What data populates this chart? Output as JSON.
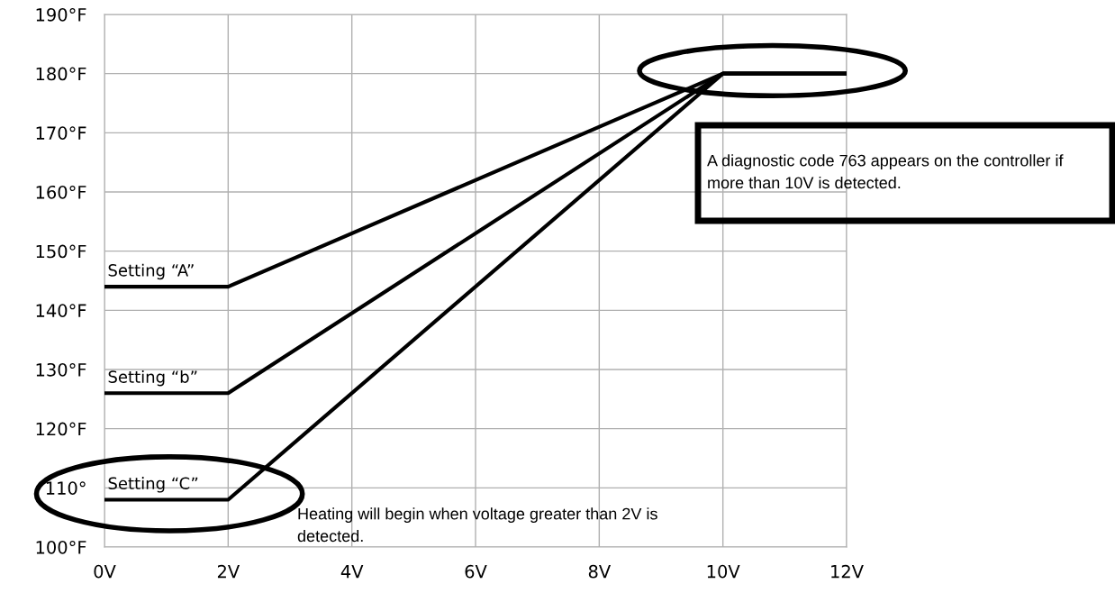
{
  "chart_data": {
    "type": "line",
    "x": [
      0,
      2,
      10,
      12
    ],
    "xlim": [
      0,
      12
    ],
    "ylim": [
      100,
      190
    ],
    "xticks": [
      {
        "value": 0,
        "label": "0V"
      },
      {
        "value": 2,
        "label": "2V"
      },
      {
        "value": 4,
        "label": "4V"
      },
      {
        "value": 6,
        "label": "6V"
      },
      {
        "value": 8,
        "label": "8V"
      },
      {
        "value": 10,
        "label": "10V"
      },
      {
        "value": 12,
        "label": "12V"
      }
    ],
    "yticks": [
      {
        "value": 100,
        "label": "100°F"
      },
      {
        "value": 110,
        "label": "110°"
      },
      {
        "value": 120,
        "label": "120°F"
      },
      {
        "value": 130,
        "label": "130°F"
      },
      {
        "value": 140,
        "label": "140°F"
      },
      {
        "value": 150,
        "label": "150°F"
      },
      {
        "value": 160,
        "label": "160°F"
      },
      {
        "value": 170,
        "label": "170°F"
      },
      {
        "value": 180,
        "label": "180°F"
      },
      {
        "value": 190,
        "label": "190°F"
      }
    ],
    "series": [
      {
        "name": "Setting “A”",
        "color": "#000000",
        "values": [
          144,
          144,
          180,
          180
        ]
      },
      {
        "name": "Setting “b”",
        "color": "#000000",
        "values": [
          126,
          126,
          180,
          180
        ]
      },
      {
        "name": "Setting “C”",
        "color": "#000000",
        "values": [
          108,
          108,
          180,
          180
        ]
      }
    ],
    "annotations": [
      "A diagnostic code 763 appears on the controller if more than 10V is detected.",
      "Heating will begin when voltage greater than 2V is detected."
    ],
    "grid": true,
    "marker": "none",
    "line_style": "solid"
  }
}
